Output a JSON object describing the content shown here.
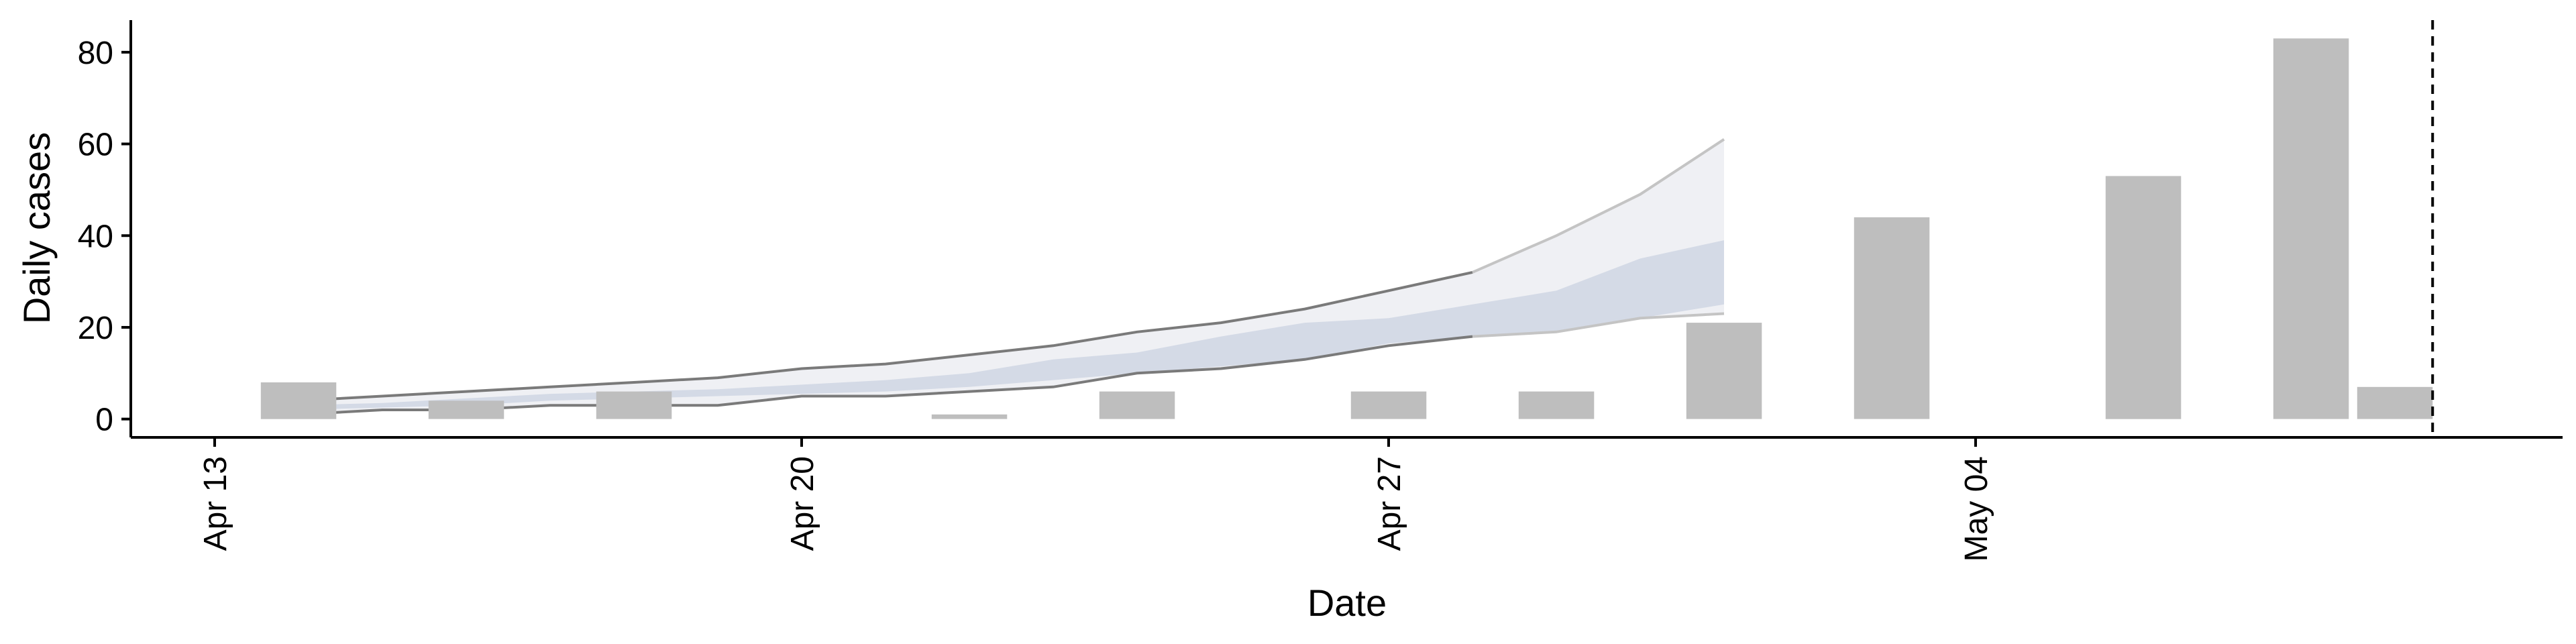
{
  "chart_data": {
    "type": "bar",
    "xlabel": "Date",
    "ylabel": "Daily cases",
    "x_ticks": [
      {
        "date": "2020-04-13",
        "label": "Apr 13"
      },
      {
        "date": "2020-04-20",
        "label": "Apr 20"
      },
      {
        "date": "2020-04-27",
        "label": "Apr 27"
      },
      {
        "date": "2020-05-04",
        "label": "May 04"
      }
    ],
    "y_ticks": [
      0,
      20,
      40,
      60,
      80
    ],
    "xlim": [
      "2020-04-12",
      "2020-05-11"
    ],
    "ylim": [
      -4,
      87
    ],
    "bars": [
      {
        "date": "2020-04-14",
        "value": 8
      },
      {
        "date": "2020-04-16",
        "value": 4
      },
      {
        "date": "2020-04-18",
        "value": 6
      },
      {
        "date": "2020-04-22",
        "value": 1
      },
      {
        "date": "2020-04-24",
        "value": 6
      },
      {
        "date": "2020-04-27",
        "value": 6
      },
      {
        "date": "2020-04-29",
        "value": 6
      },
      {
        "date": "2020-05-01",
        "value": 21
      },
      {
        "date": "2020-05-03",
        "value": 44
      },
      {
        "date": "2020-05-06",
        "value": 53
      },
      {
        "date": "2020-05-08",
        "value": 83
      },
      {
        "date": "2020-05-09",
        "value": 7
      }
    ],
    "nowcast_band": {
      "dates": [
        "2020-04-14",
        "2020-04-15",
        "2020-04-16",
        "2020-04-17",
        "2020-04-18",
        "2020-04-19",
        "2020-04-20",
        "2020-04-21",
        "2020-04-22",
        "2020-04-23",
        "2020-04-24",
        "2020-04-25",
        "2020-04-26",
        "2020-04-27",
        "2020-04-28",
        "2020-04-29",
        "2020-04-30",
        "2020-05-01"
      ],
      "upper_90": [
        4,
        5,
        6,
        7,
        8,
        9,
        11,
        12,
        14,
        16,
        19,
        21,
        24,
        28,
        32,
        40,
        49,
        61
      ],
      "upper_50": [
        3,
        3.5,
        4.5,
        5.5,
        6,
        6.5,
        7.5,
        8.5,
        10,
        13,
        14.5,
        18,
        21,
        22,
        25,
        28,
        35,
        39
      ],
      "lower_50": [
        2,
        2.5,
        3,
        4,
        4.5,
        5,
        5.5,
        6,
        7,
        8.5,
        10,
        11.5,
        13,
        16.5,
        18,
        19,
        22,
        25
      ],
      "lower_90": [
        1,
        2,
        2,
        3,
        3,
        3,
        5,
        5,
        6,
        7,
        10,
        11,
        13,
        16,
        18,
        19,
        22,
        23
      ]
    },
    "reference_line": {
      "date": "2020-05-09.45",
      "style": "dashed"
    },
    "colors": {
      "bars": "#bebebe",
      "outer_band": "#eff0f4",
      "inner_band": "#d4dae6",
      "band_edge_dark": "#7a7a7a",
      "band_edge_light": "#c4c4c4",
      "reference_line": "#000000"
    },
    "grid": false,
    "legend": "none"
  }
}
